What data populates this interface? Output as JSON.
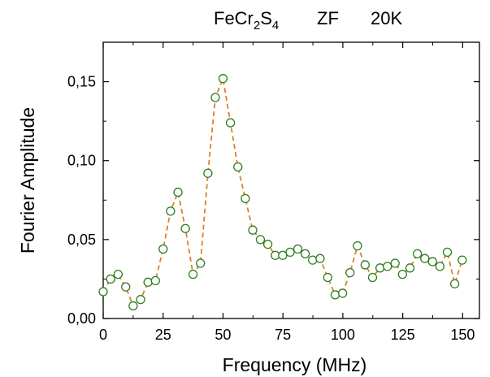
{
  "chart_data": {
    "type": "scatter",
    "title": {
      "compound": {
        "base1": "FeCr",
        "sub1": "2",
        "base2": "S",
        "sub2": "4"
      },
      "field": "ZF",
      "temperature": "20K"
    },
    "xlabel": "Frequency  (MHz)",
    "ylabel": "Fourier Amplitude",
    "xlim": [
      0,
      157
    ],
    "ylim": [
      0,
      0.175
    ],
    "x_ticks": [
      0,
      25,
      50,
      75,
      100,
      125,
      150
    ],
    "x_tick_labels": [
      "0",
      "25",
      "50",
      "75",
      "100",
      "125",
      "150"
    ],
    "y_ticks": [
      0,
      0.05,
      0.1,
      0.15
    ],
    "y_tick_labels": [
      "0,00",
      "0,05",
      "0,10",
      "0,15"
    ],
    "grid": false,
    "colors": {
      "marker": "#2e7d1e",
      "line": "#d9822b",
      "axis": "#000000"
    },
    "series": [
      {
        "marker": "open-circle",
        "line_style": "dashed",
        "x": [
          0,
          3.1,
          6.2,
          9.4,
          12.5,
          15.6,
          18.7,
          21.8,
          25,
          28.1,
          31.2,
          34.3,
          37.5,
          40.6,
          43.7,
          46.8,
          50,
          53.1,
          56.2,
          59.3,
          62.4,
          65.6,
          68.7,
          71.8,
          74.9,
          78,
          81.2,
          84.3,
          87.4,
          90.5,
          93.7,
          96.8,
          99.9,
          103,
          106.1,
          109.3,
          112.4,
          115.5,
          118.6,
          121.8,
          124.9,
          128,
          131.1,
          134.2,
          137.4,
          140.5,
          143.6,
          146.7,
          149.8
        ],
        "y": [
          0.017,
          0.025,
          0.028,
          0.02,
          0.008,
          0.012,
          0.023,
          0.024,
          0.044,
          0.068,
          0.08,
          0.057,
          0.028,
          0.035,
          0.092,
          0.14,
          0.152,
          0.124,
          0.096,
          0.076,
          0.056,
          0.05,
          0.047,
          0.04,
          0.04,
          0.042,
          0.044,
          0.041,
          0.037,
          0.038,
          0.026,
          0.015,
          0.016,
          0.029,
          0.046,
          0.034,
          0.026,
          0.032,
          0.033,
          0.035,
          0.028,
          0.032,
          0.041,
          0.038,
          0.036,
          0.033,
          0.042,
          0.022,
          0.037
        ]
      }
    ]
  }
}
